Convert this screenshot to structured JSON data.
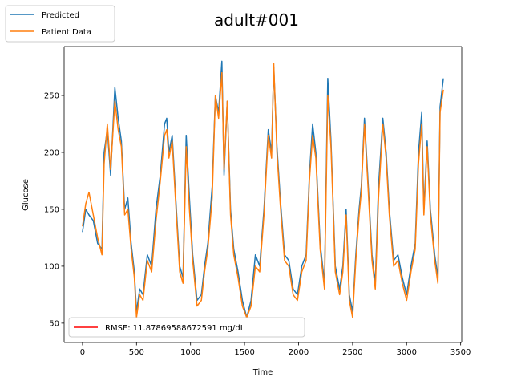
{
  "chart_data": {
    "type": "line",
    "title": "adult#001",
    "xlabel": "Time",
    "ylabel": "Glucose",
    "xlim": [
      -170,
      3510
    ],
    "ylim": [
      33,
      293
    ],
    "xticks": [
      0,
      500,
      1000,
      1500,
      2000,
      2500,
      3000,
      3500
    ],
    "yticks": [
      50,
      100,
      150,
      200,
      250
    ],
    "grid": false,
    "legends": [
      {
        "placement": "top-left outside",
        "entries": [
          "Predicted",
          "Patient Data"
        ]
      },
      {
        "placement": "lower-left",
        "entries": [
          "RMSE: 11.87869588672591 mg/dL"
        ]
      }
    ],
    "series": [
      {
        "name": "Predicted",
        "color": "#1f77b4",
        "x": [
          0,
          30,
          60,
          100,
          140,
          180,
          200,
          230,
          260,
          300,
          330,
          360,
          390,
          420,
          450,
          480,
          500,
          530,
          560,
          600,
          640,
          680,
          720,
          760,
          780,
          800,
          830,
          860,
          900,
          930,
          960,
          990,
          1020,
          1060,
          1100,
          1130,
          1160,
          1200,
          1230,
          1260,
          1290,
          1310,
          1340,
          1370,
          1400,
          1440,
          1480,
          1520,
          1560,
          1600,
          1640,
          1680,
          1720,
          1750,
          1770,
          1800,
          1830,
          1870,
          1910,
          1950,
          1990,
          2030,
          2070,
          2100,
          2130,
          2160,
          2200,
          2240,
          2270,
          2300,
          2340,
          2380,
          2410,
          2440,
          2470,
          2500,
          2530,
          2560,
          2580,
          2610,
          2640,
          2680,
          2710,
          2740,
          2780,
          2810,
          2840,
          2880,
          2920,
          2960,
          3000,
          3040,
          3080,
          3110,
          3140,
          3160,
          3190,
          3220,
          3260,
          3290,
          3310,
          3340
        ],
        "y": [
          130,
          150,
          145,
          140,
          120,
          115,
          200,
          220,
          180,
          257,
          230,
          210,
          150,
          160,
          120,
          95,
          60,
          80,
          75,
          110,
          100,
          150,
          180,
          225,
          230,
          200,
          215,
          165,
          100,
          90,
          215,
          160,
          110,
          70,
          75,
          100,
          120,
          170,
          250,
          235,
          280,
          180,
          245,
          150,
          115,
          95,
          70,
          55,
          70,
          110,
          100,
          150,
          220,
          200,
          275,
          205,
          160,
          110,
          105,
          80,
          75,
          100,
          110,
          180,
          225,
          200,
          120,
          85,
          265,
          210,
          100,
          80,
          100,
          150,
          75,
          60,
          110,
          150,
          170,
          230,
          180,
          110,
          85,
          170,
          230,
          200,
          150,
          105,
          110,
          90,
          75,
          100,
          120,
          200,
          235,
          150,
          210,
          150,
          110,
          90,
          240,
          265
        ]
      },
      {
        "name": "Patient Data",
        "color": "#ff7f0e",
        "x": [
          0,
          30,
          60,
          100,
          140,
          180,
          200,
          230,
          260,
          300,
          330,
          360,
          390,
          420,
          450,
          480,
          500,
          530,
          560,
          600,
          640,
          680,
          720,
          760,
          780,
          800,
          830,
          860,
          900,
          930,
          960,
          990,
          1020,
          1060,
          1100,
          1130,
          1160,
          1200,
          1230,
          1260,
          1290,
          1310,
          1340,
          1370,
          1400,
          1440,
          1480,
          1520,
          1560,
          1600,
          1640,
          1680,
          1720,
          1750,
          1770,
          1800,
          1830,
          1870,
          1910,
          1950,
          1990,
          2030,
          2070,
          2100,
          2130,
          2160,
          2200,
          2240,
          2270,
          2300,
          2340,
          2380,
          2410,
          2440,
          2470,
          2500,
          2530,
          2560,
          2580,
          2610,
          2640,
          2680,
          2710,
          2740,
          2780,
          2810,
          2840,
          2880,
          2920,
          2960,
          3000,
          3040,
          3080,
          3110,
          3140,
          3160,
          3190,
          3220,
          3260,
          3290,
          3310,
          3340
        ],
        "y": [
          135,
          155,
          165,
          145,
          125,
          110,
          190,
          225,
          185,
          245,
          220,
          205,
          145,
          150,
          115,
          90,
          55,
          75,
          70,
          105,
          95,
          140,
          175,
          215,
          220,
          195,
          210,
          160,
          95,
          85,
          205,
          150,
          105,
          65,
          70,
          95,
          115,
          160,
          250,
          230,
          270,
          185,
          245,
          145,
          110,
          90,
          65,
          55,
          65,
          100,
          95,
          145,
          215,
          195,
          278,
          200,
          155,
          105,
          100,
          75,
          70,
          95,
          105,
          175,
          215,
          195,
          115,
          80,
          250,
          205,
          95,
          75,
          95,
          145,
          70,
          55,
          105,
          145,
          165,
          225,
          175,
          105,
          80,
          160,
          225,
          195,
          145,
          100,
          105,
          85,
          70,
          95,
          115,
          190,
          225,
          145,
          205,
          145,
          105,
          85,
          235,
          255
        ]
      }
    ]
  }
}
